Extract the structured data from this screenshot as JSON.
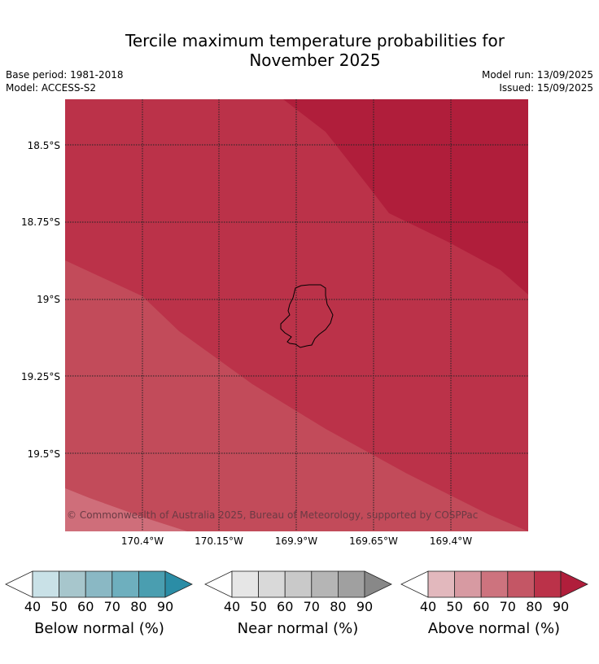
{
  "title_line1": "Tercile maximum temperature probabilities for",
  "title_line2": "November 2025",
  "meta_left": {
    "base_period": "Base period: 1981-2018",
    "model": "Model: ACCESS-S2"
  },
  "meta_right": {
    "model_run": "Model run: 13/09/2025",
    "issued": "Issued: 15/09/2025"
  },
  "map": {
    "region_label": "Niue island outline",
    "copyright": "© Commonwealth of Australia 2025, Bureau of Meteorology, supported by COSPPac",
    "lat_labels": [
      "18.5°S",
      "18.75°S",
      "19°S",
      "19.25°S",
      "19.5°S"
    ],
    "lon_labels": [
      "170.4°W",
      "170.15°W",
      "169.9°W",
      "169.65°W",
      "169.4°W"
    ],
    "fill_colors": {
      "above_90": "#b01e3b",
      "above_80": "#bb3249",
      "above_70": "#c24b5a",
      "above_60": "#cf6e7a"
    }
  },
  "colorbars": [
    {
      "label": "Below normal (%)",
      "ticks": [
        "40",
        "50",
        "60",
        "70",
        "80",
        "90"
      ],
      "colors": [
        "#ffffff",
        "#c9e1e7",
        "#a7c6cc",
        "#8ab8c4",
        "#6eafbe",
        "#4a9eb0",
        "#2b8da6"
      ]
    },
    {
      "label": "Near normal (%)",
      "ticks": [
        "40",
        "50",
        "60",
        "70",
        "80",
        "90"
      ],
      "colors": [
        "#ffffff",
        "#e6e6e6",
        "#d9d9d9",
        "#c9c9c9",
        "#b5b5b5",
        "#a0a0a0",
        "#888888"
      ]
    },
    {
      "label": "Above normal (%)",
      "ticks": [
        "40",
        "50",
        "60",
        "70",
        "80",
        "90"
      ],
      "colors": [
        "#ffffff",
        "#e2b8bd",
        "#d79aa2",
        "#cd737e",
        "#c45665",
        "#bb3249",
        "#b01e3b"
      ]
    }
  ]
}
